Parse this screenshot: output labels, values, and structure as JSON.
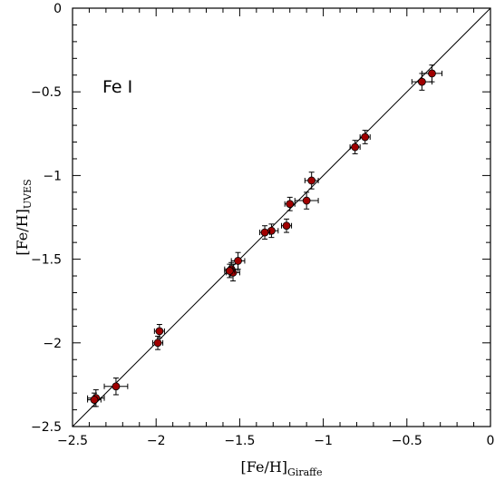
{
  "chart_data": {
    "type": "scatter",
    "title": "",
    "annotation": "Fe I",
    "xlabel": {
      "main": "[Fe/H]",
      "sub": "Giraffe"
    },
    "ylabel": {
      "main": "[Fe/H]",
      "sub": "UVES"
    },
    "xlim": [
      -2.5,
      0
    ],
    "ylim": [
      -2.5,
      0
    ],
    "x_ticks": [
      -2.5,
      -2,
      -1.5,
      -1,
      -0.5,
      0
    ],
    "y_ticks": [
      -2.5,
      -2,
      -1.5,
      -1,
      -0.5,
      0
    ],
    "x_tick_labels": [
      "−2.5",
      "−2",
      "−1.5",
      "−1",
      "−0.5",
      "0"
    ],
    "y_tick_labels": [
      "−2.5",
      "−2",
      "−1.5",
      "−1",
      "−0.5",
      "0"
    ],
    "grid": false,
    "reference_line": {
      "from": [
        -2.5,
        -2.5
      ],
      "to": [
        0,
        0
      ]
    },
    "point_color": "#a00000",
    "points": [
      {
        "x": -0.35,
        "y": -0.39,
        "xerr": 0.06,
        "yerr": 0.05
      },
      {
        "x": -0.41,
        "y": -0.44,
        "xerr": 0.06,
        "yerr": 0.05
      },
      {
        "x": -0.75,
        "y": -0.77,
        "xerr": 0.03,
        "yerr": 0.04
      },
      {
        "x": -0.81,
        "y": -0.83,
        "xerr": 0.03,
        "yerr": 0.04
      },
      {
        "x": -1.07,
        "y": -1.03,
        "xerr": 0.04,
        "yerr": 0.05
      },
      {
        "x": -1.1,
        "y": -1.15,
        "xerr": 0.07,
        "yerr": 0.05
      },
      {
        "x": -1.2,
        "y": -1.17,
        "xerr": 0.03,
        "yerr": 0.04
      },
      {
        "x": -1.22,
        "y": -1.3,
        "xerr": 0.03,
        "yerr": 0.04
      },
      {
        "x": -1.31,
        "y": -1.33,
        "xerr": 0.04,
        "yerr": 0.04
      },
      {
        "x": -1.35,
        "y": -1.34,
        "xerr": 0.03,
        "yerr": 0.04
      },
      {
        "x": -1.51,
        "y": -1.51,
        "xerr": 0.04,
        "yerr": 0.05
      },
      {
        "x": -1.55,
        "y": -1.56,
        "xerr": 0.04,
        "yerr": 0.04
      },
      {
        "x": -1.54,
        "y": -1.58,
        "xerr": 0.04,
        "yerr": 0.05
      },
      {
        "x": -1.56,
        "y": -1.57,
        "xerr": 0.03,
        "yerr": 0.04
      },
      {
        "x": -1.98,
        "y": -1.93,
        "xerr": 0.03,
        "yerr": 0.04
      },
      {
        "x": -1.99,
        "y": -2.0,
        "xerr": 0.03,
        "yerr": 0.04
      },
      {
        "x": -2.24,
        "y": -2.26,
        "xerr": 0.07,
        "yerr": 0.05
      },
      {
        "x": -2.36,
        "y": -2.33,
        "xerr": 0.05,
        "yerr": 0.05
      },
      {
        "x": -2.37,
        "y": -2.34,
        "xerr": 0.04,
        "yerr": 0.04
      }
    ]
  }
}
